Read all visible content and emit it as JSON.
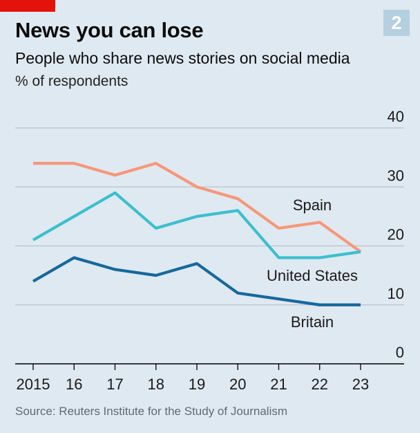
{
  "header": {
    "title": "News you can lose",
    "subtitle": "People who share news stories on social media",
    "unit": "% of respondents",
    "chart_number": "2"
  },
  "footer": {
    "source": "Source: Reuters Institute for the Study of Journalism"
  },
  "colors": {
    "background": "#dfe9f1",
    "accent_red": "#e3120b",
    "gridline": "#b7c3cc",
    "axis": "#000000",
    "spain": "#f7977a",
    "united_states": "#3bbfce",
    "britain": "#16689c"
  },
  "chart_data": {
    "type": "line",
    "title": "News you can lose",
    "subtitle": "People who share news stories on social media",
    "ylabel": "% of respondents",
    "xlabel": "",
    "x": [
      "2015",
      "16",
      "17",
      "18",
      "19",
      "20",
      "21",
      "22",
      "23"
    ],
    "ylim": [
      0,
      40
    ],
    "yticks": [
      0,
      10,
      20,
      30,
      40
    ],
    "grid": true,
    "series": [
      {
        "name": "Spain",
        "color": "#f7977a",
        "values": [
          34,
          34,
          32,
          34,
          30,
          28,
          23,
          24,
          19
        ]
      },
      {
        "name": "United States",
        "color": "#3bbfce",
        "values": [
          21,
          25,
          29,
          23,
          25,
          26,
          18,
          18,
          19
        ]
      },
      {
        "name": "Britain",
        "color": "#16689c",
        "values": [
          14,
          18,
          16,
          15,
          17,
          12,
          11,
          10,
          10
        ]
      }
    ]
  }
}
